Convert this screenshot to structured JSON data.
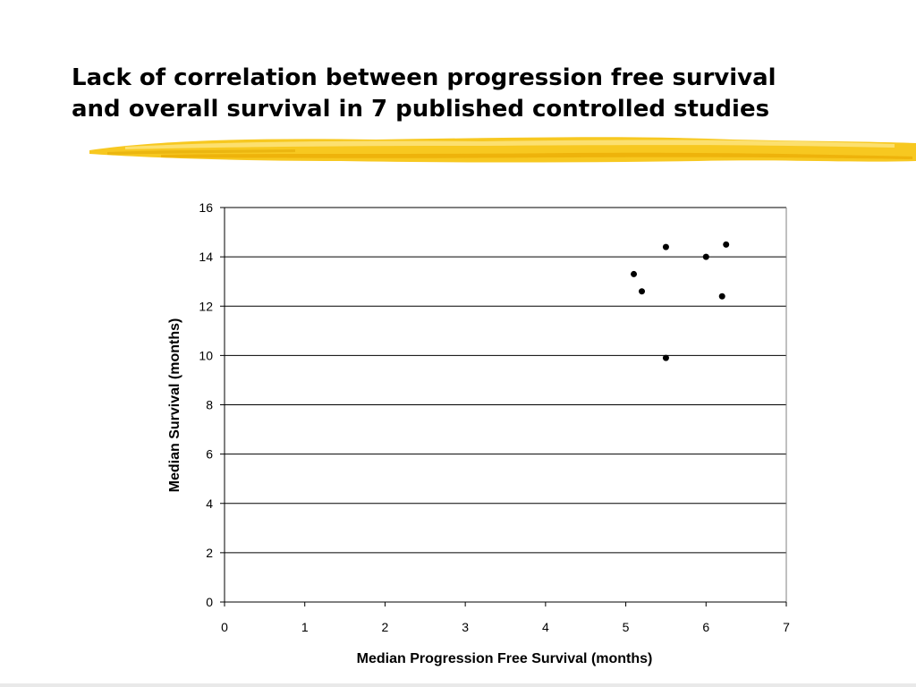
{
  "slide": {
    "title_line1": "Lack of correlation between progression free survival",
    "title_line2": "and overall survival in 7 published controlled studies",
    "accent_color": "#f5c400"
  },
  "chart_data": {
    "type": "scatter",
    "title": "",
    "xlabel": "Median Progression Free Survival (months)",
    "ylabel": "Median Survival (months)",
    "xlim": [
      0,
      7
    ],
    "ylim": [
      0,
      16
    ],
    "x_ticks": [
      0,
      1,
      2,
      3,
      4,
      5,
      6,
      7
    ],
    "y_ticks": [
      0,
      2,
      4,
      6,
      8,
      10,
      12,
      14,
      16
    ],
    "grid": "horizontal",
    "legend": "none",
    "marker_color": "#000000",
    "points": [
      {
        "x": 5.1,
        "y": 13.3
      },
      {
        "x": 5.2,
        "y": 12.6
      },
      {
        "x": 5.5,
        "y": 14.4
      },
      {
        "x": 5.5,
        "y": 9.9
      },
      {
        "x": 6.0,
        "y": 14.0
      },
      {
        "x": 6.2,
        "y": 12.4
      },
      {
        "x": 6.25,
        "y": 14.5
      }
    ]
  }
}
